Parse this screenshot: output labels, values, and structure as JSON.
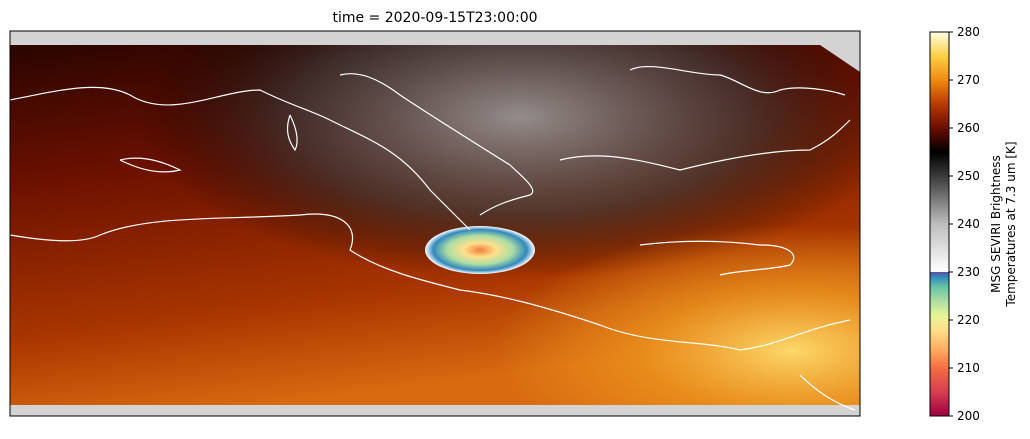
{
  "chart_data": {
    "type": "map",
    "title": "time = 2020-09-15T23:00:00",
    "colorbar": {
      "label": [
        "MSG SEVIRI Brightness",
        "Temperatures at 7.3 um [K]"
      ],
      "lim": [
        200,
        280
      ],
      "ticks": [
        200,
        210,
        220,
        230,
        240,
        250,
        260,
        270,
        280
      ],
      "stops": [
        {
          "value": 200,
          "color": "#9e0142"
        },
        {
          "value": 205,
          "color": "#d53e4f"
        },
        {
          "value": 210,
          "color": "#f46d43"
        },
        {
          "value": 214,
          "color": "#fdae61"
        },
        {
          "value": 218,
          "color": "#fee08b"
        },
        {
          "value": 221,
          "color": "#e6f598"
        },
        {
          "value": 224,
          "color": "#abdda4"
        },
        {
          "value": 227,
          "color": "#66c2a5"
        },
        {
          "value": 229,
          "color": "#3288bd"
        },
        {
          "value": 230,
          "color": "#5e4fa2"
        },
        {
          "value": 230.01,
          "color": "#ffffff"
        },
        {
          "value": 240,
          "color": "#bdbdbd"
        },
        {
          "value": 250,
          "color": "#3a3a3a"
        },
        {
          "value": 255,
          "color": "#000000"
        },
        {
          "value": 260,
          "color": "#6a0d00"
        },
        {
          "value": 265,
          "color": "#b83a00"
        },
        {
          "value": 270,
          "color": "#f08a10"
        },
        {
          "value": 275,
          "color": "#fccf45"
        },
        {
          "value": 280,
          "color": "#ffffe6"
        }
      ]
    }
  }
}
